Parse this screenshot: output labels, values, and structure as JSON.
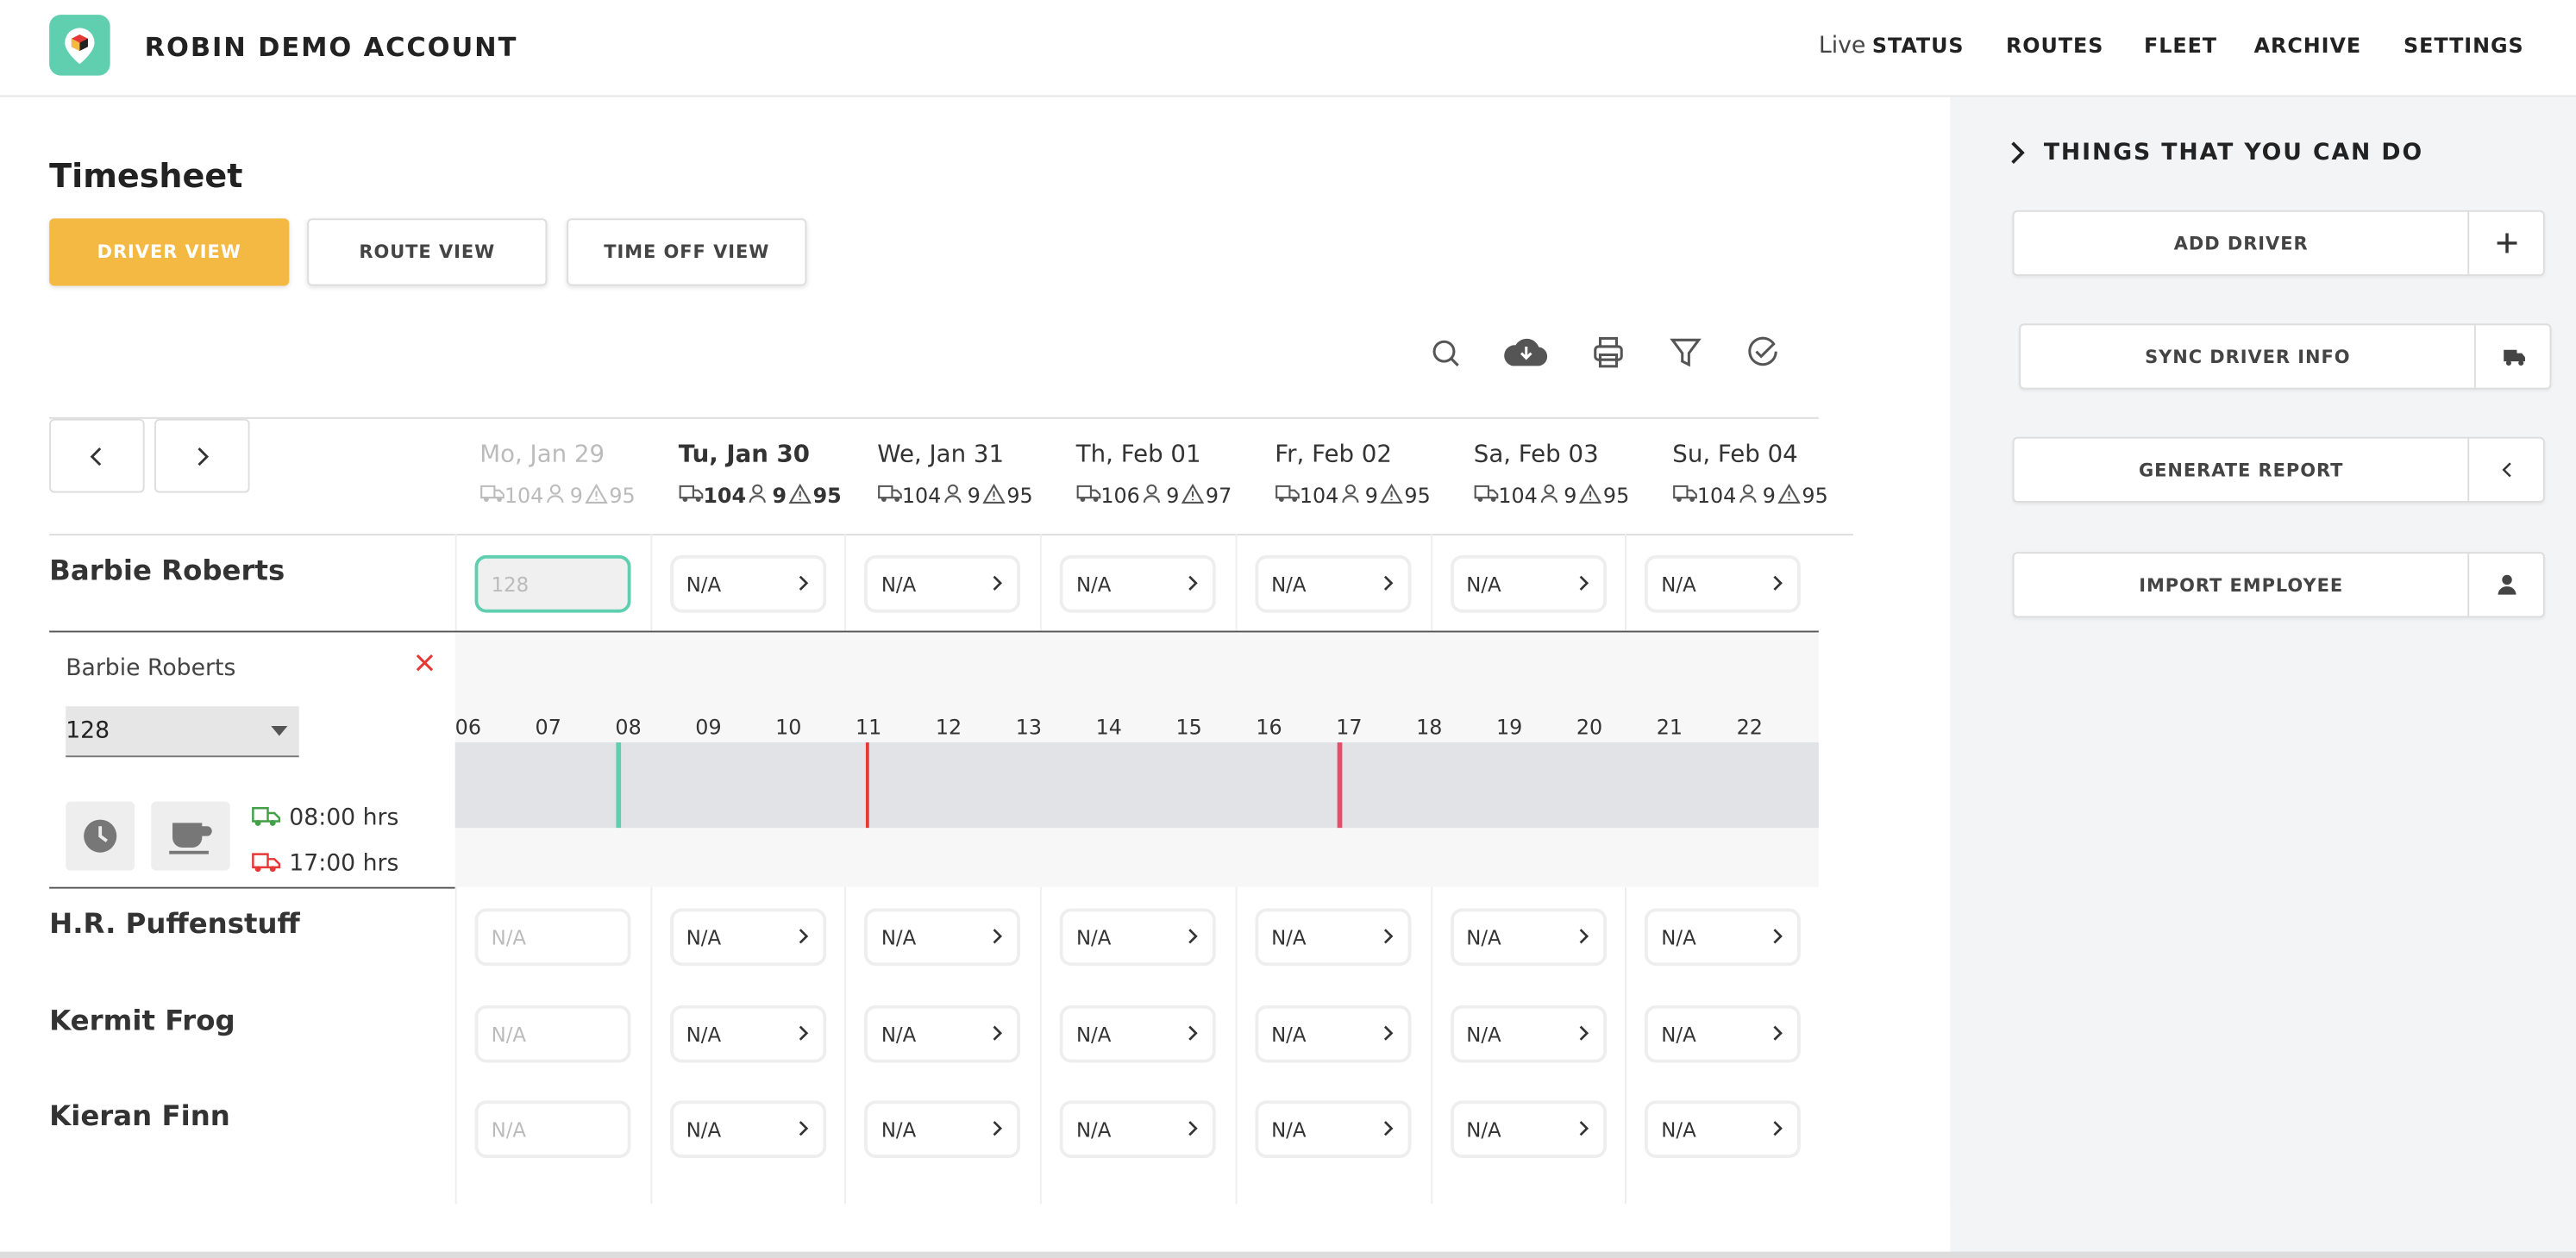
{
  "header": {
    "brand": "ROBIN DEMO ACCOUNT",
    "nav": [
      {
        "prefix": "Live",
        "label": "STATUS"
      },
      {
        "label": "ROUTES"
      },
      {
        "label": "FLEET"
      },
      {
        "label": "ARCHIVE"
      },
      {
        "label": "SETTINGS"
      }
    ]
  },
  "timesheet": {
    "title": "Timesheet",
    "views": [
      "DRIVER VIEW",
      "ROUTE VIEW",
      "TIME OFF VIEW"
    ],
    "days": [
      {
        "label": "Mo, Jan 29",
        "vehicles": 104,
        "drivers": 9,
        "alerts": 95
      },
      {
        "label": "Tu, Jan 30",
        "vehicles": 104,
        "drivers": 9,
        "alerts": 95
      },
      {
        "label": "We, Jan 31",
        "vehicles": 104,
        "drivers": 9,
        "alerts": 95
      },
      {
        "label": "Th, Feb 01",
        "vehicles": 106,
        "drivers": 9,
        "alerts": 97
      },
      {
        "label": "Fr, Feb 02",
        "vehicles": 104,
        "drivers": 9,
        "alerts": 95
      },
      {
        "label": "Sa, Feb 03",
        "vehicles": 104,
        "drivers": 9,
        "alerts": 95
      },
      {
        "label": "Su, Feb 04",
        "vehicles": 104,
        "drivers": 9,
        "alerts": 95
      }
    ],
    "drivers": [
      {
        "name": "Barbie Roberts",
        "cells": [
          "128",
          "N/A",
          "N/A",
          "N/A",
          "N/A",
          "N/A",
          "N/A"
        ]
      },
      {
        "name": "H.R. Puffenstuff",
        "cells": [
          "N/A",
          "N/A",
          "N/A",
          "N/A",
          "N/A",
          "N/A",
          "N/A"
        ]
      },
      {
        "name": "Kermit Frog",
        "cells": [
          "N/A",
          "N/A",
          "N/A",
          "N/A",
          "N/A",
          "N/A",
          "N/A"
        ]
      },
      {
        "name": "Kieran Finn",
        "cells": [
          "N/A",
          "N/A",
          "N/A",
          "N/A",
          "N/A",
          "N/A",
          "N/A"
        ]
      }
    ],
    "detail": {
      "name": "Barbie Roberts",
      "select": "128",
      "hours": [
        "06",
        "07",
        "08",
        "09",
        "10",
        "11",
        "12",
        "13",
        "14",
        "15",
        "16",
        "17",
        "18",
        "19",
        "20",
        "21",
        "22"
      ],
      "start": "08:00 hrs",
      "end": "17:00 hrs"
    }
  },
  "sidebar": {
    "title": "THINGS THAT YOU CAN DO",
    "actions": [
      "ADD DRIVER",
      "SYNC DRIVER INFO",
      "GENERATE REPORT",
      "IMPORT EMPLOYEE"
    ]
  }
}
